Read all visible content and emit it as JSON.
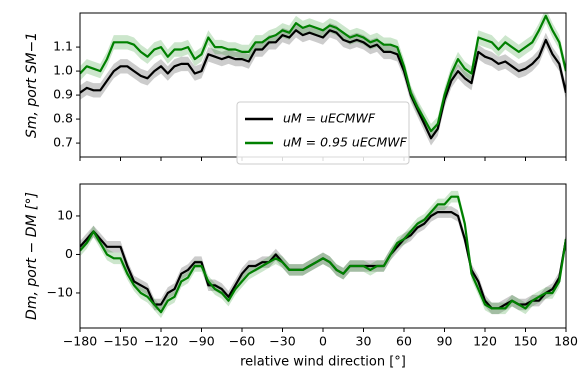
{
  "chart_data": [
    {
      "type": "line",
      "ylabel": "Sm, port SM−1",
      "legend": "center",
      "x": [
        -180,
        -175,
        -170,
        -165,
        -160,
        -155,
        -150,
        -145,
        -140,
        -135,
        -130,
        -125,
        -120,
        -115,
        -110,
        -105,
        -100,
        -95,
        -90,
        -85,
        -80,
        -75,
        -70,
        -65,
        -60,
        -55,
        -50,
        -45,
        -40,
        -35,
        -30,
        -25,
        -20,
        -15,
        -10,
        -5,
        0,
        5,
        10,
        15,
        20,
        25,
        30,
        35,
        40,
        45,
        50,
        55,
        60,
        65,
        70,
        75,
        80,
        85,
        90,
        95,
        100,
        105,
        110,
        115,
        120,
        125,
        130,
        135,
        140,
        145,
        150,
        155,
        160,
        165,
        170,
        175,
        180
      ],
      "xlim": [
        -180,
        180
      ],
      "xticks": [
        {
          "value": -180,
          "label": "−180"
        },
        {
          "value": -150,
          "label": "−150"
        },
        {
          "value": -120,
          "label": "−120"
        },
        {
          "value": -90,
          "label": "−90"
        },
        {
          "value": -60,
          "label": "−60"
        },
        {
          "value": -30,
          "label": "−30"
        },
        0,
        30,
        60,
        90,
        120,
        150,
        180
      ],
      "ylim": [
        0.642,
        1.242
      ],
      "yticks": [
        0.7,
        0.8,
        0.9,
        {
          "value": 1,
          "label": "1.0"
        },
        1.1
      ],
      "series": [
        {
          "name": "uM = uECMWF",
          "color": "#000000",
          "error": 0.03,
          "values": [
            0.91,
            0.93,
            0.92,
            0.92,
            0.96,
            1.0,
            1.02,
            1.02,
            1.0,
            0.98,
            0.97,
            1.0,
            1.02,
            0.99,
            1.02,
            1.03,
            1.03,
            0.99,
            1.0,
            1.07,
            1.06,
            1.05,
            1.06,
            1.05,
            1.05,
            1.04,
            1.09,
            1.09,
            1.12,
            1.12,
            1.15,
            1.14,
            1.17,
            1.15,
            1.16,
            1.15,
            1.14,
            1.17,
            1.16,
            1.13,
            1.12,
            1.13,
            1.12,
            1.1,
            1.11,
            1.08,
            1.08,
            1.07,
            1.0,
            0.9,
            0.84,
            0.78,
            0.72,
            0.76,
            0.88,
            0.96,
            1.0,
            0.97,
            0.95,
            1.08,
            1.06,
            1.05,
            1.03,
            1.04,
            1.02,
            1.0,
            1.01,
            1.03,
            1.06,
            1.13,
            1.07,
            1.03,
            0.91
          ]
        },
        {
          "name": "uM = 0.95 uECMWF",
          "color": "#008000",
          "error": 0.03,
          "values": [
            0.99,
            1.02,
            1.01,
            1.0,
            1.05,
            1.12,
            1.12,
            1.12,
            1.11,
            1.08,
            1.06,
            1.09,
            1.1,
            1.06,
            1.09,
            1.09,
            1.1,
            1.05,
            1.07,
            1.14,
            1.1,
            1.1,
            1.09,
            1.09,
            1.08,
            1.08,
            1.12,
            1.12,
            1.14,
            1.15,
            1.17,
            1.16,
            1.2,
            1.18,
            1.19,
            1.18,
            1.17,
            1.19,
            1.18,
            1.16,
            1.14,
            1.15,
            1.14,
            1.12,
            1.13,
            1.11,
            1.11,
            1.1,
            1.02,
            0.91,
            0.85,
            0.8,
            0.75,
            0.78,
            0.9,
            0.99,
            1.05,
            1.01,
            0.99,
            1.14,
            1.13,
            1.12,
            1.09,
            1.12,
            1.1,
            1.08,
            1.1,
            1.12,
            1.17,
            1.23,
            1.17,
            1.12,
            1.0
          ]
        }
      ]
    },
    {
      "type": "line",
      "ylabel": "Dm, port − DM [°]",
      "xlabel": "relative wind direction [°]",
      "x": [
        -180,
        -175,
        -170,
        -165,
        -160,
        -155,
        -150,
        -145,
        -140,
        -135,
        -130,
        -125,
        -120,
        -115,
        -110,
        -105,
        -100,
        -95,
        -90,
        -85,
        -80,
        -75,
        -70,
        -65,
        -60,
        -55,
        -50,
        -45,
        -40,
        -35,
        -30,
        -25,
        -20,
        -15,
        -10,
        -5,
        0,
        5,
        10,
        15,
        20,
        25,
        30,
        35,
        40,
        45,
        50,
        55,
        60,
        65,
        70,
        75,
        80,
        85,
        90,
        95,
        100,
        105,
        110,
        115,
        120,
        125,
        130,
        135,
        140,
        145,
        150,
        155,
        160,
        165,
        170,
        175,
        180
      ],
      "xlim": [
        -180,
        180
      ],
      "xticks": [
        {
          "value": -180,
          "label": "−180"
        },
        {
          "value": -150,
          "label": "−150"
        },
        {
          "value": -120,
          "label": "−120"
        },
        {
          "value": -90,
          "label": "−90"
        },
        {
          "value": -60,
          "label": "−60"
        },
        {
          "value": -30,
          "label": "−30"
        },
        0,
        30,
        60,
        90,
        120,
        150,
        180
      ],
      "ylim": [
        -19.1,
        18.3
      ],
      "yticks": [
        {
          "value": -10,
          "label": "−10"
        },
        0,
        10
      ],
      "series": [
        {
          "color": "#000000",
          "error": 1.5,
          "values": [
            2,
            4,
            6,
            4,
            2,
            2,
            2,
            -3,
            -7,
            -8,
            -9,
            -13,
            -13,
            -10,
            -9,
            -5,
            -4,
            -2,
            -2,
            -8,
            -8,
            -9,
            -11,
            -8,
            -5,
            -3,
            -3,
            -2,
            -2,
            0,
            -2,
            -4,
            -4,
            -4,
            -3,
            -2,
            -1,
            -2,
            -4,
            -5,
            -3,
            -3,
            -3,
            -3,
            -3,
            -3,
            0,
            2,
            4,
            5,
            7,
            8,
            10,
            11,
            11,
            11,
            10,
            4,
            -4,
            -7,
            -12,
            -14,
            -14,
            -13,
            -12,
            -13,
            -13,
            -12,
            -12,
            -10,
            -9,
            -6,
            4
          ]
        },
        {
          "color": "#008000",
          "error": 1.5,
          "values": [
            1,
            3,
            6,
            3,
            0,
            -1,
            -1,
            -5,
            -8,
            -10,
            -11,
            -13,
            -15,
            -12,
            -11,
            -7,
            -6,
            -3,
            -3,
            -7,
            -9,
            -10,
            -12,
            -9,
            -7,
            -5,
            -4,
            -3,
            -2,
            -1,
            -2,
            -4,
            -4,
            -4,
            -3,
            -2,
            -1,
            -2,
            -4,
            -5,
            -3,
            -3,
            -3,
            -4,
            -3,
            -3,
            0,
            3,
            4,
            6,
            8,
            9,
            11,
            13,
            13,
            15,
            15,
            8,
            -5,
            -9,
            -13,
            -14,
            -14,
            -14,
            -12,
            -13,
            -14,
            -12,
            -11,
            -10,
            -10,
            -7,
            4
          ]
        }
      ]
    }
  ]
}
